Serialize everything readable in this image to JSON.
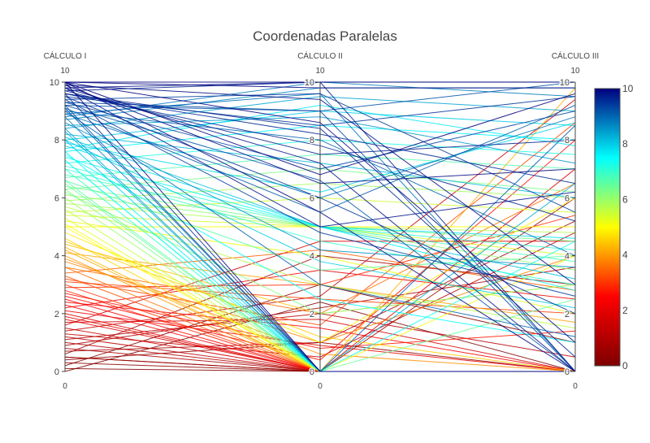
{
  "chart_data": {
    "type": "parallel_coordinates",
    "title": "Coordenadas Paralelas",
    "axes": [
      {
        "label": "CÁLCULO I",
        "range": [
          0,
          10
        ],
        "ticks": [
          0,
          2,
          4,
          6,
          8,
          10
        ],
        "range_labels": [
          "0",
          "10"
        ]
      },
      {
        "label": "CÁLCULO II",
        "range": [
          0,
          10
        ],
        "ticks": [
          0,
          2,
          4,
          6,
          8,
          10
        ],
        "range_labels": [
          "0",
          "10"
        ]
      },
      {
        "label": "CÁLCULO III",
        "range": [
          0,
          10
        ],
        "ticks": [
          0,
          2,
          4,
          6,
          8,
          10
        ],
        "range_labels": [
          "0",
          "10"
        ]
      }
    ],
    "color_by": "CÁLCULO I",
    "colorscale": [
      "#7f0000",
      "#ff0000",
      "#ffff00",
      "#00ffff",
      "#00007f"
    ],
    "colorbar": {
      "range": [
        0,
        10
      ],
      "ticks": [
        "0",
        "2",
        "4",
        "6",
        "8",
        "10"
      ]
    },
    "records": [
      [
        0.1,
        0.0,
        0.0
      ],
      [
        0.3,
        0.0,
        0.0
      ],
      [
        0.5,
        0.0,
        0.0
      ],
      [
        0.8,
        0.0,
        0.0
      ],
      [
        1.0,
        0.0,
        0.0
      ],
      [
        1.2,
        0.0,
        0.0
      ],
      [
        1.5,
        0.0,
        0.0
      ],
      [
        1.8,
        0.0,
        0.0
      ],
      [
        2.0,
        0.0,
        0.0
      ],
      [
        2.3,
        0.0,
        0.0
      ],
      [
        2.5,
        0.0,
        0.0
      ],
      [
        2.8,
        0.0,
        0.0
      ],
      [
        3.0,
        0.0,
        0.0
      ],
      [
        3.3,
        0.0,
        0.0
      ],
      [
        3.6,
        0.0,
        0.0
      ],
      [
        4.0,
        0.0,
        0.0
      ],
      [
        4.3,
        0.0,
        0.0
      ],
      [
        4.6,
        0.0,
        0.0
      ],
      [
        5.0,
        0.0,
        0.0
      ],
      [
        5.3,
        0.0,
        0.0
      ],
      [
        5.6,
        0.0,
        0.0
      ],
      [
        6.0,
        0.0,
        0.0
      ],
      [
        6.3,
        0.0,
        0.0
      ],
      [
        6.6,
        0.0,
        0.0
      ],
      [
        7.0,
        0.0,
        0.0
      ],
      [
        7.3,
        0.0,
        0.0
      ],
      [
        7.6,
        0.0,
        0.0
      ],
      [
        8.0,
        0.0,
        0.0
      ],
      [
        8.4,
        0.0,
        0.0
      ],
      [
        8.8,
        0.0,
        0.0
      ],
      [
        9.2,
        0.0,
        0.0
      ],
      [
        9.6,
        0.0,
        0.0
      ],
      [
        10.0,
        0.0,
        0.0
      ],
      [
        0.4,
        1.0,
        0.0
      ],
      [
        1.1,
        2.0,
        0.5
      ],
      [
        0.2,
        3.0,
        1.0
      ],
      [
        2.4,
        1.5,
        0.0
      ],
      [
        3.1,
        2.5,
        2.0
      ],
      [
        0.6,
        4.0,
        3.0
      ],
      [
        2.2,
        3.5,
        2.5
      ],
      [
        3.8,
        1.0,
        4.0
      ],
      [
        4.4,
        2.0,
        3.0
      ],
      [
        1.6,
        4.5,
        4.5
      ],
      [
        0.9,
        2.2,
        3.6
      ],
      [
        2.7,
        0.8,
        1.4
      ],
      [
        3.4,
        4.2,
        2.8
      ],
      [
        1.3,
        0.5,
        4.8
      ],
      [
        4.1,
        3.0,
        1.7
      ],
      [
        5.0,
        5.0,
        5.0
      ],
      [
        5.4,
        5.0,
        4.0
      ],
      [
        5.8,
        5.0,
        4.8
      ],
      [
        6.1,
        5.0,
        3.5
      ],
      [
        6.4,
        5.0,
        4.5
      ],
      [
        6.8,
        5.0,
        3.8
      ],
      [
        7.1,
        5.0,
        4.2
      ],
      [
        7.4,
        5.0,
        2.8
      ],
      [
        7.8,
        5.0,
        4.6
      ],
      [
        8.1,
        5.0,
        3.2
      ],
      [
        5.2,
        4.0,
        2.0
      ],
      [
        5.7,
        3.0,
        1.5
      ],
      [
        6.2,
        2.0,
        3.0
      ],
      [
        6.6,
        3.5,
        4.0
      ],
      [
        7.0,
        4.5,
        3.0
      ],
      [
        7.5,
        2.5,
        1.0
      ],
      [
        8.0,
        3.8,
        2.2
      ],
      [
        8.6,
        4.2,
        3.6
      ],
      [
        9.0,
        3.0,
        1.2
      ],
      [
        9.4,
        4.8,
        2.6
      ],
      [
        5.5,
        6.0,
        5.5
      ],
      [
        5.9,
        6.5,
        6.0
      ],
      [
        6.3,
        7.0,
        6.2
      ],
      [
        6.7,
        7.5,
        7.0
      ],
      [
        7.2,
        8.0,
        7.5
      ],
      [
        7.6,
        8.5,
        8.0
      ],
      [
        8.0,
        9.0,
        8.5
      ],
      [
        8.4,
        9.5,
        9.0
      ],
      [
        8.8,
        10.0,
        9.5
      ],
      [
        9.2,
        9.0,
        10.0
      ],
      [
        9.5,
        8.5,
        9.5
      ],
      [
        9.8,
        10.0,
        10.0
      ],
      [
        10.0,
        9.8,
        9.8
      ],
      [
        10.0,
        10.0,
        10.0
      ],
      [
        9.7,
        7.5,
        8.0
      ],
      [
        9.9,
        6.5,
        7.0
      ],
      [
        9.6,
        8.2,
        6.5
      ],
      [
        9.3,
        7.0,
        9.0
      ],
      [
        8.9,
        6.0,
        8.8
      ],
      [
        8.5,
        8.8,
        7.2
      ],
      [
        8.2,
        7.2,
        6.0
      ],
      [
        7.9,
        6.2,
        8.6
      ],
      [
        7.7,
        9.2,
        7.8
      ],
      [
        9.4,
        9.6,
        5.5
      ],
      [
        9.1,
        5.5,
        9.2
      ],
      [
        9.8,
        5.0,
        6.2
      ],
      [
        10.0,
        6.8,
        9.6
      ],
      [
        9.6,
        7.8,
        5.2
      ],
      [
        8.7,
        9.8,
        9.8
      ],
      [
        9.0,
        8.0,
        4.0
      ],
      [
        9.9,
        9.4,
        3.0
      ],
      [
        9.5,
        6.0,
        2.0
      ],
      [
        10.0,
        8.6,
        1.0
      ],
      [
        9.8,
        7.2,
        0.0
      ],
      [
        9.3,
        9.0,
        0.0
      ],
      [
        9.7,
        10.0,
        0.0
      ],
      [
        10.0,
        5.5,
        0.0
      ],
      [
        9.2,
        6.6,
        0.0
      ],
      [
        9.6,
        8.4,
        0.5
      ],
      [
        8.9,
        9.6,
        0.0
      ],
      [
        4.8,
        1.0,
        6.0
      ],
      [
        3.6,
        2.0,
        6.5
      ],
      [
        2.9,
        3.0,
        5.4
      ],
      [
        1.9,
        0.0,
        7.0
      ],
      [
        0.7,
        1.0,
        5.2
      ],
      [
        1.4,
        2.6,
        9.4
      ],
      [
        2.6,
        0.4,
        8.0
      ],
      [
        4.2,
        0.0,
        9.8
      ],
      [
        3.2,
        1.6,
        8.6
      ],
      [
        0.5,
        0.0,
        6.0
      ],
      [
        6.5,
        0.0,
        2.5
      ],
      [
        7.3,
        0.0,
        4.5
      ],
      [
        8.3,
        0.0,
        6.5
      ],
      [
        9.1,
        0.0,
        8.5
      ],
      [
        5.1,
        0.0,
        4.0
      ],
      [
        4.5,
        1.2,
        0.0
      ],
      [
        3.9,
        0.6,
        0.0
      ],
      [
        1.7,
        1.8,
        0.0
      ],
      [
        0.0,
        2.4,
        0.0
      ],
      [
        2.1,
        0.9,
        0.0
      ]
    ]
  }
}
